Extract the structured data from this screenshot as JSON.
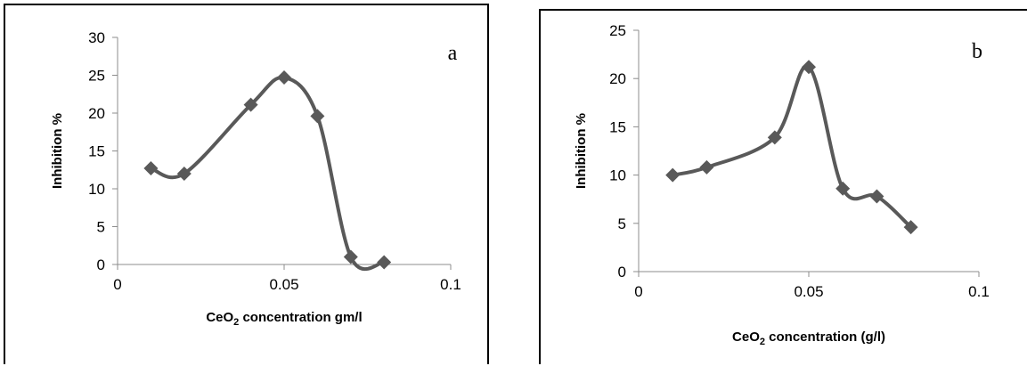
{
  "chart_data": [
    {
      "type": "line",
      "panel_label": "a",
      "xlabel": "CeO2 concentration gm/l",
      "xlabel_parts": {
        "pre": "CeO",
        "sub": "2",
        "post": " concentration gm/l"
      },
      "ylabel": "Inhibition %",
      "x_ticks": [
        "0",
        "0.05",
        "0.1"
      ],
      "y_ticks": [
        "0",
        "5",
        "10",
        "15",
        "20",
        "25",
        "30"
      ],
      "xlim": [
        0,
        0.1
      ],
      "ylim": [
        0,
        30
      ],
      "smooth": true,
      "grid": false,
      "legend": "none",
      "color": "#595959",
      "series": [
        {
          "x": [
            0.01,
            0.02,
            0.04,
            0.05,
            0.06,
            0.07,
            0.08
          ],
          "y": [
            12.7,
            12.0,
            21.1,
            24.7,
            19.6,
            1.0,
            0.3
          ]
        }
      ]
    },
    {
      "type": "line",
      "panel_label": "b",
      "xlabel": "CeO2 concentration (g/l)",
      "xlabel_parts": {
        "pre": "CeO",
        "sub": "2",
        "post": " concentration (g/l)"
      },
      "ylabel": "Inhibition %",
      "x_ticks": [
        "0",
        "0.05",
        "0.1"
      ],
      "y_ticks": [
        "0",
        "5",
        "10",
        "15",
        "20",
        "25"
      ],
      "xlim": [
        0,
        0.1
      ],
      "ylim": [
        0,
        25
      ],
      "smooth": true,
      "grid": false,
      "legend": "none",
      "color": "#595959",
      "series": [
        {
          "x": [
            0.01,
            0.02,
            0.04,
            0.05,
            0.06,
            0.07,
            0.08
          ],
          "y": [
            10.0,
            10.8,
            13.9,
            21.2,
            8.6,
            7.8,
            4.6
          ]
        }
      ]
    }
  ]
}
